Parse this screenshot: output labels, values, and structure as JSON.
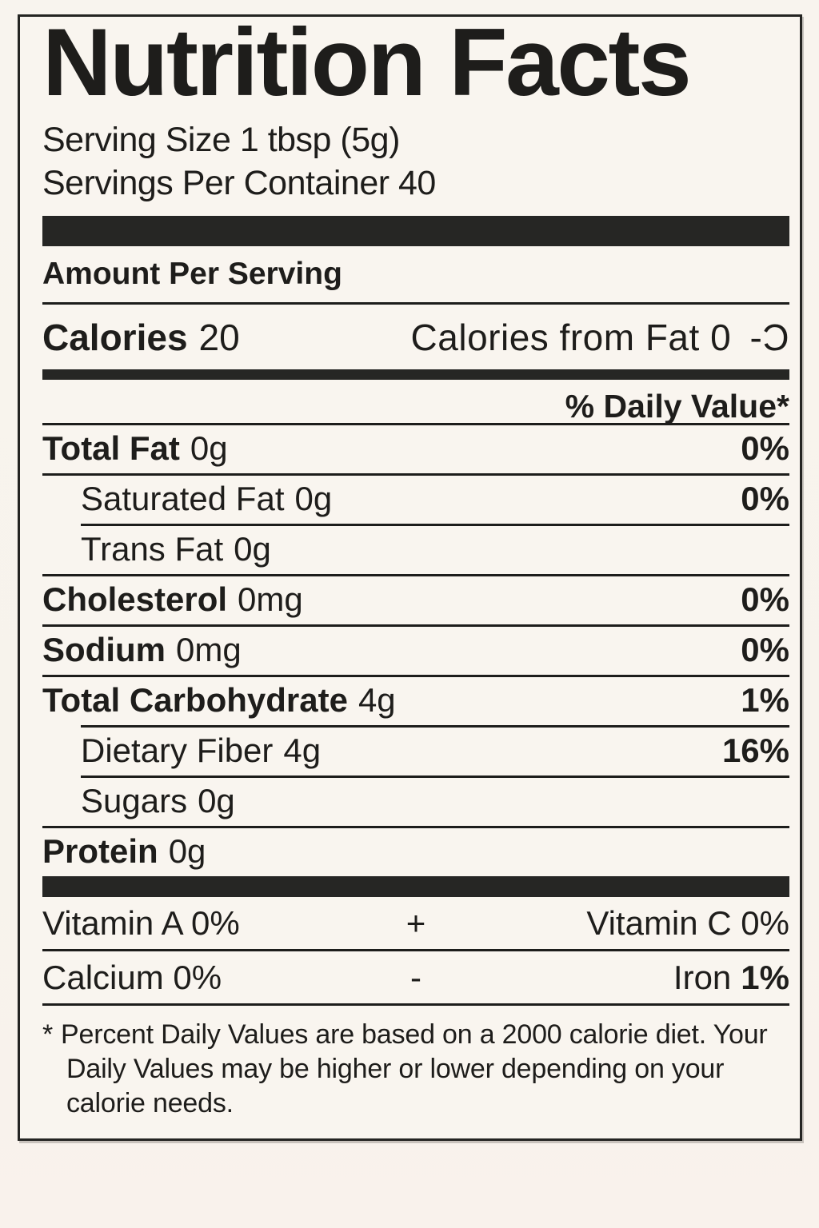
{
  "colors": {
    "background": "#f8f4ee",
    "text": "#1e1d1b",
    "bar": "#262624"
  },
  "label": {
    "title": "Nutrition Facts",
    "serving": {
      "size": "Serving Size 1 tbsp (5g)",
      "per_container": "Servings Per Container 40"
    },
    "amount_per_serving": "Amount Per Serving",
    "calories": {
      "label": "Calories",
      "value": "20"
    },
    "calories_from_fat": {
      "label": "Calories from Fat",
      "value": "0",
      "glyph": "-Ɔ"
    },
    "daily_value_header": "% Daily Value*",
    "nutrients": [
      {
        "name": "Total Fat",
        "amount": "0g",
        "daily_value": "0%"
      },
      {
        "name": "Saturated Fat",
        "amount": "0g",
        "daily_value": "0%"
      },
      {
        "name": "Trans Fat",
        "amount": "0g",
        "daily_value": ""
      },
      {
        "name": "Cholesterol",
        "amount": "0mg",
        "daily_value": "0%"
      },
      {
        "name": "Sodium",
        "amount": "0mg",
        "daily_value": "0%"
      },
      {
        "name": "Total Carbohydrate",
        "amount": "4g",
        "daily_value": "1%"
      },
      {
        "name": "Dietary Fiber",
        "amount": "4g",
        "daily_value": "16%"
      },
      {
        "name": "Sugars",
        "amount": "0g",
        "daily_value": ""
      },
      {
        "name": "Protein",
        "amount": "0g",
        "daily_value": ""
      }
    ],
    "micronutrients": {
      "row1": {
        "left": "Vitamin A 0%",
        "separator": "+",
        "right": "Vitamin C 0%"
      },
      "row2": {
        "left": "Calcium 0%",
        "separator": "-",
        "right_label": "Iron",
        "right_value": "1%"
      }
    },
    "footnote": {
      "marker": "*",
      "text": "Percent Daily Values are based on a 2000 calorie diet. Your Daily Values may be higher or lower depending on your calorie needs."
    }
  }
}
